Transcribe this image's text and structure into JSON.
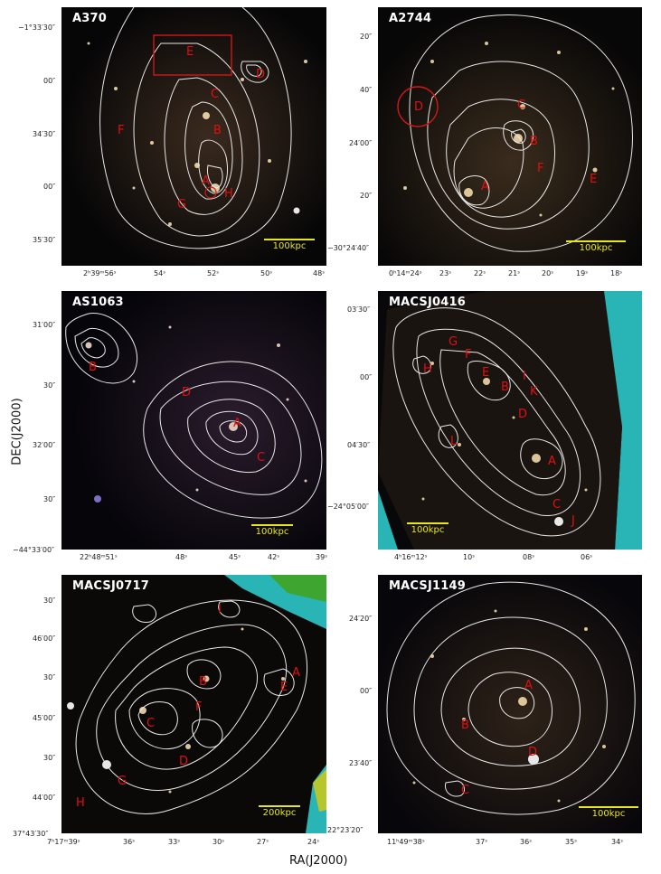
{
  "axes": {
    "ylabel": "DEC(J2000)",
    "xlabel": "RA(J2000)"
  },
  "panels": [
    {
      "id": "a370",
      "title": "A370",
      "scalebar": "100kpc",
      "dec_ticks": [
        "−1°33′30″",
        "00″",
        "34′30″",
        "00″",
        "35′30″"
      ],
      "ra_ticks": [
        "2ʰ39ᵐ56ˢ",
        "54ˢ",
        "52ˢ",
        "50ˢ",
        "48ˢ"
      ],
      "labels": [
        "E",
        "D",
        "C",
        "F",
        "B",
        "A",
        "G",
        "H"
      ],
      "contour_levels": [
        "0.6",
        "0.8",
        "1.0",
        "1.2",
        "1.4",
        "1.6",
        "1.8",
        "2.0"
      ]
    },
    {
      "id": "a2744",
      "title": "A2744",
      "scalebar": "100kpc",
      "dec_ticks": [
        "20″",
        "40″",
        "24′00″",
        "20″",
        "−30°24′40″"
      ],
      "ra_ticks": [
        "0ʰ14ᵐ24ˢ",
        "23ˢ",
        "22ˢ",
        "21ˢ",
        "20ˢ",
        "19ˢ",
        "18ˢ"
      ],
      "labels": [
        "D",
        "C",
        "B",
        "F",
        "E",
        "A"
      ],
      "contour_levels": [
        "0.6",
        "0.8",
        "1.0",
        "1.2",
        "1.4",
        "1.6",
        "1.8"
      ]
    },
    {
      "id": "as1063",
      "title": "AS1063",
      "scalebar": "100kpc",
      "dec_ticks": [
        "31′00″",
        "30″",
        "32′00″",
        "30″",
        "−44°33′00″"
      ],
      "ra_ticks": [
        "22ʰ48ᵐ51ˢ",
        "48ˢ",
        "45ˢ",
        "42ˢ",
        "39ˢ"
      ],
      "labels": [
        "B",
        "D",
        "A",
        "C"
      ],
      "contour_levels": [
        "0.6",
        "0.8",
        "1.0",
        "1.2",
        "1.4"
      ]
    },
    {
      "id": "macsj0416",
      "title": "MACSJ0416",
      "scalebar": "100kpc",
      "dec_ticks": [
        "03′30″",
        "00″",
        "04′30″",
        "−24°05′00″"
      ],
      "ra_ticks": [
        "4ʰ16ᵐ12ˢ",
        "10ˢ",
        "08ˢ",
        "06ˢ"
      ],
      "labels": [
        "G",
        "F",
        "H",
        "E",
        "B",
        "I",
        "K",
        "D",
        "L",
        "A",
        "C",
        "J"
      ],
      "contour_levels": [
        "0.60",
        "0.75",
        "0.90",
        "1.05",
        "1.20"
      ]
    },
    {
      "id": "macsj0717",
      "title": "MACSJ0717",
      "scalebar": "200kpc",
      "dec_ticks": [
        "30″",
        "46′00″",
        "30″",
        "45′00″",
        "30″",
        "44′00″",
        "37°43′30″"
      ],
      "ra_ticks": [
        "7ʰ17ᵐ39ˢ",
        "36ˢ",
        "33ˢ",
        "30ˢ",
        "27ˢ",
        "24ˢ"
      ],
      "labels": [
        "I",
        "A",
        "E",
        "B",
        "F",
        "C",
        "D",
        "G",
        "H"
      ],
      "contour_levels": [
        "1.0",
        "1.2",
        "1.4",
        "1.6",
        "1.8",
        "2.0"
      ]
    },
    {
      "id": "macsj1149",
      "title": "MACSJ1149",
      "scalebar": "100kpc",
      "dec_ticks": [
        "24′20″",
        "00″",
        "23′40″",
        "22°23′20″"
      ],
      "ra_ticks": [
        "11ʰ49ᵐ38ˢ",
        "37ˢ",
        "36ˢ",
        "35ˢ",
        "34ˢ"
      ],
      "labels": [
        "A",
        "B",
        "D",
        "C"
      ],
      "contour_levels": [
        "0.60",
        "0.85",
        "1.10",
        "1.35",
        "1.60"
      ]
    }
  ],
  "colors": {
    "contour": "#e8e8e8",
    "label": "#e01010",
    "scalebar": "#e6e619",
    "flag_cyan": "#2fd4d4",
    "flag_green": "#3fa321",
    "flag_yellow": "#c8c81e"
  }
}
